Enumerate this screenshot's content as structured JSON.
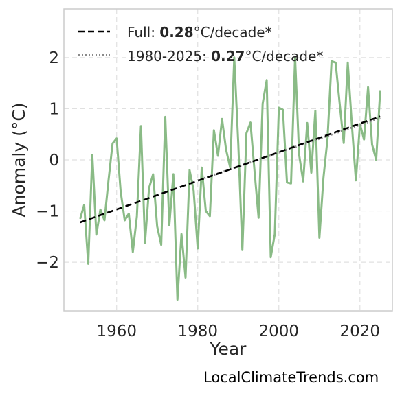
{
  "chart_data": {
    "type": "line",
    "xlabel": "Year",
    "ylabel": "Anomaly (°C)",
    "xlim": [
      1947,
      2028
    ],
    "ylim": [
      -2.95,
      2.95
    ],
    "x_ticks": [
      1960,
      1980,
      2000,
      2020
    ],
    "y_ticks": [
      {
        "value": -2,
        "label": "−2"
      },
      {
        "value": -1,
        "label": "−1"
      },
      {
        "value": 0,
        "label": "0"
      },
      {
        "value": 1,
        "label": "1"
      },
      {
        "value": 2,
        "label": "2"
      }
    ],
    "grid": true,
    "legend_placement": "top-left",
    "colors": {
      "series": "#8abb86",
      "full_trend": "#000000",
      "recent_trend": "#8a8a8a",
      "axes": "#cccccc",
      "grid": "#e0e0e0"
    },
    "series": [
      {
        "x": [
          1951,
          1952,
          1953,
          1954,
          1955,
          1956,
          1957,
          1958,
          1959,
          1960,
          1961,
          1962,
          1963,
          1964,
          1965,
          1966,
          1967,
          1968,
          1969,
          1970,
          1971,
          1972,
          1973,
          1974,
          1975,
          1976,
          1977,
          1978,
          1979,
          1980,
          1981,
          1982,
          1983,
          1984,
          1985,
          1986,
          1987,
          1988,
          1989,
          1990,
          1991,
          1992,
          1993,
          1994,
          1995,
          1996,
          1997,
          1998,
          1999,
          2000,
          2001,
          2002,
          2003,
          2004,
          2005,
          2006,
          2007,
          2008,
          2009,
          2010,
          2011,
          2012,
          2013,
          2014,
          2015,
          2016,
          2017,
          2018,
          2019,
          2020,
          2021,
          2022,
          2023,
          2024,
          2025
        ],
        "values": [
          -1.15,
          -0.88,
          -2.03,
          0.1,
          -1.46,
          -0.97,
          -1.18,
          -0.4,
          0.32,
          0.42,
          -0.62,
          -1.18,
          -1.05,
          -1.8,
          -1.1,
          0.66,
          -1.62,
          -0.55,
          -0.28,
          -1.3,
          -1.66,
          0.84,
          -1.28,
          -0.28,
          -2.73,
          -1.45,
          -2.3,
          -0.2,
          -0.6,
          -1.73,
          -0.15,
          -1.0,
          -1.1,
          0.58,
          0.08,
          0.8,
          0.2,
          -0.15,
          2.0,
          0.3,
          -1.76,
          0.52,
          0.73,
          -0.22,
          -1.13,
          1.1,
          1.56,
          -1.9,
          -1.45,
          1.02,
          0.98,
          -0.44,
          -0.46,
          2.0,
          0.1,
          -0.42,
          0.72,
          -0.25,
          0.96,
          -1.52,
          -0.35,
          0.41,
          1.93,
          1.9,
          1.1,
          0.33,
          1.9,
          0.7,
          -0.4,
          0.7,
          0.4,
          1.42,
          0.3,
          0.0,
          1.36
        ]
      }
    ],
    "trends": [
      {
        "x": [
          1951,
          2025
        ],
        "y": [
          -1.22,
          0.85
        ]
      },
      {
        "x": [
          1980,
          2025
        ],
        "y": [
          -0.4,
          0.82
        ]
      }
    ],
    "legend": {
      "full": {
        "prefix": "Full: ",
        "value": "0.28",
        "suffix": "°C/decade*"
      },
      "recent": {
        "prefix": "1980-2025: ",
        "value": "0.27",
        "suffix": "°C/decade*"
      }
    }
  },
  "watermark": "LocalClimateTrends.com"
}
